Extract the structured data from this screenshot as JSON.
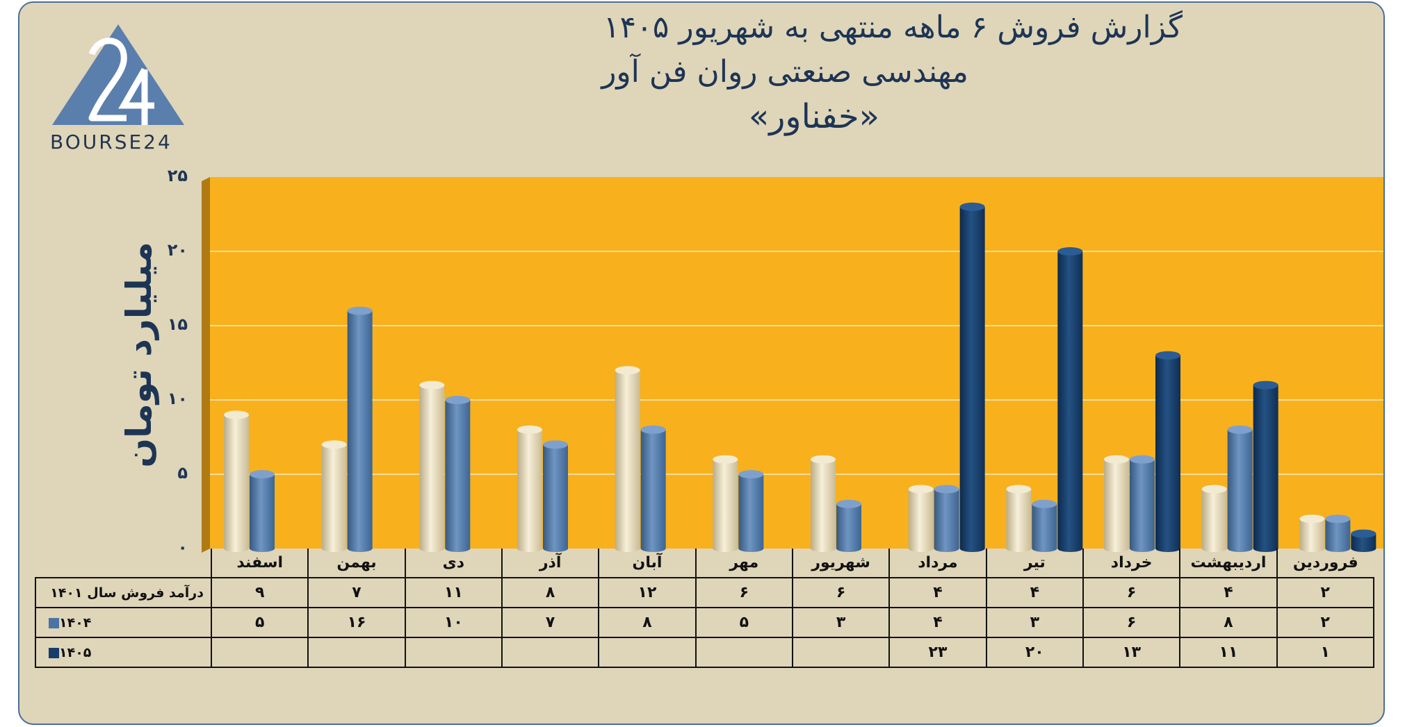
{
  "title": {
    "line1": "گزارش  فروش ۶ ماهه منتهی به شهریور ۱۴۰۵",
    "line2": "مهندسی صنعتی روان فن آور",
    "line3": "«خفناور»"
  },
  "logo": {
    "text": "BOURSE24",
    "mark": "24"
  },
  "colors": {
    "card_bg": "#dfd5b9",
    "plot_bg": "#f8b11c",
    "series_1401": "#e8dcbe",
    "series_1404": "#4b74a6",
    "series_1405": "#163d6b",
    "text": "#1d3555"
  },
  "chart_data": {
    "type": "bar",
    "ylabel": "میلیارد تومان",
    "ylim": [
      0,
      25
    ],
    "yticks": [
      "۰",
      "۵",
      "۱۰",
      "۱۵",
      "۲۰",
      "۲۵"
    ],
    "grid": true,
    "categories": [
      "فروردین",
      "اردیبهشت",
      "خرداد",
      "تیر",
      "مرداد",
      "شهریور",
      "مهر",
      "آبان",
      "آذر",
      "دی",
      "بهمن",
      "اسفند"
    ],
    "series": [
      {
        "name": "درآمد فروش سال ۱۴۰۱",
        "values": [
          2,
          4,
          6,
          4,
          4,
          6,
          6,
          12,
          8,
          11,
          7,
          9
        ],
        "labels": [
          "۲",
          "۴",
          "۶",
          "۴",
          "۴",
          "۶",
          "۶",
          "۱۲",
          "۸",
          "۱۱",
          "۷",
          "۹"
        ]
      },
      {
        "name": "۱۴۰۴",
        "values": [
          2,
          8,
          6,
          3,
          4,
          3,
          5,
          8,
          7,
          10,
          16,
          5
        ],
        "labels": [
          "۲",
          "۸",
          "۶",
          "۳",
          "۴",
          "۳",
          "۵",
          "۸",
          "۷",
          "۱۰",
          "۱۶",
          "۵"
        ]
      },
      {
        "name": "۱۴۰۵",
        "values": [
          1,
          11,
          13,
          20,
          23,
          null,
          null,
          null,
          null,
          null,
          null,
          null
        ],
        "labels": [
          "۱",
          "۱۱",
          "۱۳",
          "۲۰",
          "۲۳",
          "",
          "",
          "",
          "",
          "",
          "",
          ""
        ]
      }
    ]
  }
}
